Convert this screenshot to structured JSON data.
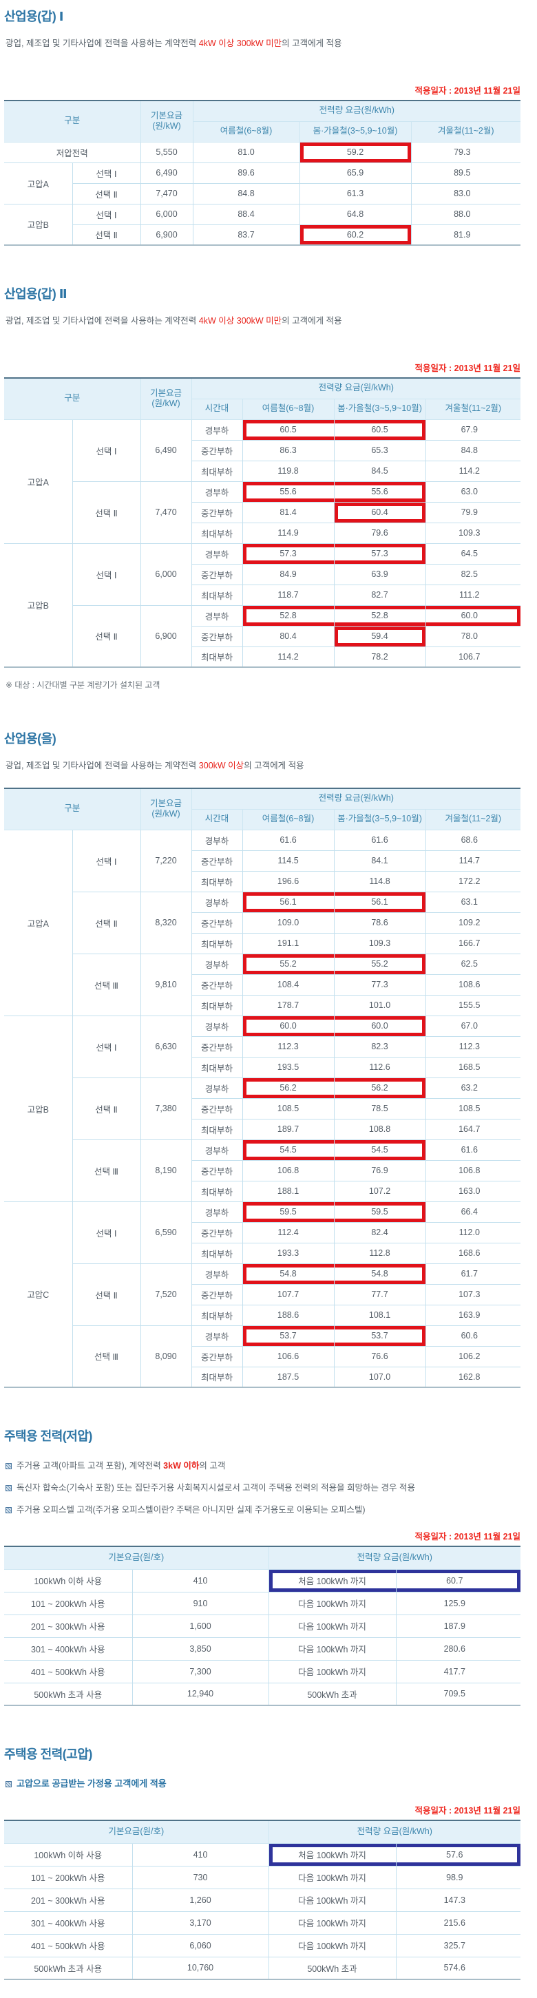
{
  "colors": {
    "title_blue": "#2d75a5",
    "accent_red": "#e8241d",
    "date_red": "#ef2b23",
    "header_bg": "#e3f1f9",
    "header_text": "#3d86ad",
    "red_box": "#e1121a",
    "navy_box": "#2e339b"
  },
  "sections": [
    {
      "title": "산업용(갑) Ⅰ",
      "desc": {
        "pre": "광업, 제조업 및 기타사업에 전력을 사용하는 계약전력 ",
        "red": "4kW 이상 300kW 미만",
        "post": "의 고객에게 적용"
      },
      "applied_date": "적용일자 : 2013년 11월 21일",
      "table": {
        "headers": {
          "group": "구분",
          "base": "기본요금(원/kW)",
          "energy": "전력량 요금(원/kWh)",
          "seasons": [
            "여름철(6~8월)",
            "봄·가을철(3~5,9~10월)",
            "겨울철(11~2월)"
          ]
        },
        "groups": [
          {
            "name": "저압전력",
            "options": [
              {
                "name": null,
                "base": "5,550",
                "values": [
                  "81.0",
                  "59.2",
                  "79.3"
                ],
                "hl": {
                  "from": 1,
                  "to": 1
                }
              }
            ]
          },
          {
            "name": "고압A",
            "options": [
              {
                "name": "선택 Ⅰ",
                "base": "6,490",
                "values": [
                  "89.6",
                  "65.9",
                  "89.5"
                ]
              },
              {
                "name": "선택 Ⅱ",
                "base": "7,470",
                "values": [
                  "84.8",
                  "61.3",
                  "83.0"
                ]
              }
            ]
          },
          {
            "name": "고압B",
            "options": [
              {
                "name": "선택 Ⅰ",
                "base": "6,000",
                "values": [
                  "88.4",
                  "64.8",
                  "88.0"
                ]
              },
              {
                "name": "선택 Ⅱ",
                "base": "6,900",
                "values": [
                  "83.7",
                  "60.2",
                  "81.9"
                ],
                "hl": {
                  "from": 1,
                  "to": 1
                }
              }
            ]
          }
        ]
      }
    },
    {
      "title": "산업용(갑) Ⅱ",
      "desc": {
        "pre": "광업, 제조업 및 기타사업에 전력을 사용하는 계약전력 ",
        "red": "4kW 이상 300kW 미만",
        "post": "의 고객에게 적용"
      },
      "applied_date": "적용일자 : 2013년 11월 21일",
      "footnote": "※ 대상 : 시간대별 구분 계량기가 설치된 고객",
      "table": {
        "headers": {
          "group": "구분",
          "base": "기본요금(원/kW)",
          "energy": "전력량 요금(원/kWh)",
          "time": "시간대",
          "seasons": [
            "여름철(6~8월)",
            "봄·가을철(3~5,9~10월)",
            "겨울철(11~2월)"
          ]
        },
        "groups": [
          {
            "name": "고압A",
            "options": [
              {
                "name": "선택 Ⅰ",
                "base": "6,490",
                "times": [
                  {
                    "label": "경부하",
                    "values": [
                      "60.5",
                      "60.5",
                      "67.9"
                    ],
                    "hl": {
                      "from": 0,
                      "to": 1
                    }
                  },
                  {
                    "label": "중간부하",
                    "values": [
                      "86.3",
                      "65.3",
                      "84.8"
                    ]
                  },
                  {
                    "label": "최대부하",
                    "values": [
                      "119.8",
                      "84.5",
                      "114.2"
                    ]
                  }
                ]
              },
              {
                "name": "선택 Ⅱ",
                "base": "7,470",
                "times": [
                  {
                    "label": "경부하",
                    "values": [
                      "55.6",
                      "55.6",
                      "63.0"
                    ],
                    "hl": {
                      "from": 0,
                      "to": 1
                    }
                  },
                  {
                    "label": "중간부하",
                    "values": [
                      "81.4",
                      "60.4",
                      "79.9"
                    ],
                    "hl": {
                      "from": 1,
                      "to": 1
                    }
                  },
                  {
                    "label": "최대부하",
                    "values": [
                      "114.9",
                      "79.6",
                      "109.3"
                    ]
                  }
                ]
              }
            ]
          },
          {
            "name": "고압B",
            "options": [
              {
                "name": "선택 Ⅰ",
                "base": "6,000",
                "times": [
                  {
                    "label": "경부하",
                    "values": [
                      "57.3",
                      "57.3",
                      "64.5"
                    ],
                    "hl": {
                      "from": 0,
                      "to": 1
                    }
                  },
                  {
                    "label": "중간부하",
                    "values": [
                      "84.9",
                      "63.9",
                      "82.5"
                    ]
                  },
                  {
                    "label": "최대부하",
                    "values": [
                      "118.7",
                      "82.7",
                      "111.2"
                    ]
                  }
                ]
              },
              {
                "name": "선택 Ⅱ",
                "base": "6,900",
                "times": [
                  {
                    "label": "경부하",
                    "values": [
                      "52.8",
                      "52.8",
                      "60.0"
                    ],
                    "hl": {
                      "from": 0,
                      "to": 2
                    }
                  },
                  {
                    "label": "중간부하",
                    "values": [
                      "80.4",
                      "59.4",
                      "78.0"
                    ],
                    "hl": {
                      "from": 1,
                      "to": 1
                    }
                  },
                  {
                    "label": "최대부하",
                    "values": [
                      "114.2",
                      "78.2",
                      "106.7"
                    ]
                  }
                ]
              }
            ]
          }
        ]
      }
    },
    {
      "title": "산업용(을)",
      "desc": {
        "pre": "광업, 제조업 및 기타사업에 전력을 사용하는 계약전력 ",
        "red": "300kW 이상",
        "post": "의 고객에게 적용"
      },
      "table": {
        "headers": {
          "group": "구분",
          "base": "기본요금(원/kW)",
          "energy": "전력량 요금(원/kWh)",
          "time": "시간대",
          "seasons": [
            "여름철(6~8월)",
            "봄·가을철(3~5,9~10월)",
            "겨울철(11~2월)"
          ]
        },
        "groups": [
          {
            "name": "고압A",
            "options": [
              {
                "name": "선택 Ⅰ",
                "base": "7,220",
                "times": [
                  {
                    "label": "경부하",
                    "values": [
                      "61.6",
                      "61.6",
                      "68.6"
                    ]
                  },
                  {
                    "label": "중간부하",
                    "values": [
                      "114.5",
                      "84.1",
                      "114.7"
                    ]
                  },
                  {
                    "label": "최대부하",
                    "values": [
                      "196.6",
                      "114.8",
                      "172.2"
                    ]
                  }
                ]
              },
              {
                "name": "선택 Ⅱ",
                "base": "8,320",
                "times": [
                  {
                    "label": "경부하",
                    "values": [
                      "56.1",
                      "56.1",
                      "63.1"
                    ],
                    "hl": {
                      "from": 0,
                      "to": 1
                    }
                  },
                  {
                    "label": "중간부하",
                    "values": [
                      "109.0",
                      "78.6",
                      "109.2"
                    ]
                  },
                  {
                    "label": "최대부하",
                    "values": [
                      "191.1",
                      "109.3",
                      "166.7"
                    ]
                  }
                ]
              },
              {
                "name": "선택 Ⅲ",
                "base": "9,810",
                "times": [
                  {
                    "label": "경부하",
                    "values": [
                      "55.2",
                      "55.2",
                      "62.5"
                    ],
                    "hl": {
                      "from": 0,
                      "to": 1
                    }
                  },
                  {
                    "label": "중간부하",
                    "values": [
                      "108.4",
                      "77.3",
                      "108.6"
                    ]
                  },
                  {
                    "label": "최대부하",
                    "values": [
                      "178.7",
                      "101.0",
                      "155.5"
                    ]
                  }
                ]
              }
            ]
          },
          {
            "name": "고압B",
            "options": [
              {
                "name": "선택 Ⅰ",
                "base": "6,630",
                "times": [
                  {
                    "label": "경부하",
                    "values": [
                      "60.0",
                      "60.0",
                      "67.0"
                    ],
                    "hl": {
                      "from": 0,
                      "to": 1
                    }
                  },
                  {
                    "label": "중간부하",
                    "values": [
                      "112.3",
                      "82.3",
                      "112.3"
                    ]
                  },
                  {
                    "label": "최대부하",
                    "values": [
                      "193.5",
                      "112.6",
                      "168.5"
                    ]
                  }
                ]
              },
              {
                "name": "선택 Ⅱ",
                "base": "7,380",
                "times": [
                  {
                    "label": "경부하",
                    "values": [
                      "56.2",
                      "56.2",
                      "63.2"
                    ],
                    "hl": {
                      "from": 0,
                      "to": 1
                    }
                  },
                  {
                    "label": "중간부하",
                    "values": [
                      "108.5",
                      "78.5",
                      "108.5"
                    ]
                  },
                  {
                    "label": "최대부하",
                    "values": [
                      "189.7",
                      "108.8",
                      "164.7"
                    ]
                  }
                ]
              },
              {
                "name": "선택 Ⅲ",
                "base": "8,190",
                "times": [
                  {
                    "label": "경부하",
                    "values": [
                      "54.5",
                      "54.5",
                      "61.6"
                    ],
                    "hl": {
                      "from": 0,
                      "to": 1
                    }
                  },
                  {
                    "label": "중간부하",
                    "values": [
                      "106.8",
                      "76.9",
                      "106.8"
                    ]
                  },
                  {
                    "label": "최대부하",
                    "values": [
                      "188.1",
                      "107.2",
                      "163.0"
                    ]
                  }
                ]
              }
            ]
          },
          {
            "name": "고압C",
            "options": [
              {
                "name": "선택 Ⅰ",
                "base": "6,590",
                "times": [
                  {
                    "label": "경부하",
                    "values": [
                      "59.5",
                      "59.5",
                      "66.4"
                    ],
                    "hl": {
                      "from": 0,
                      "to": 1
                    }
                  },
                  {
                    "label": "중간부하",
                    "values": [
                      "112.4",
                      "82.4",
                      "112.0"
                    ]
                  },
                  {
                    "label": "최대부하",
                    "values": [
                      "193.3",
                      "112.8",
                      "168.6"
                    ]
                  }
                ]
              },
              {
                "name": "선택 Ⅱ",
                "base": "7,520",
                "times": [
                  {
                    "label": "경부하",
                    "values": [
                      "54.8",
                      "54.8",
                      "61.7"
                    ],
                    "hl": {
                      "from": 0,
                      "to": 1
                    }
                  },
                  {
                    "label": "중간부하",
                    "values": [
                      "107.7",
                      "77.7",
                      "107.3"
                    ]
                  },
                  {
                    "label": "최대부하",
                    "values": [
                      "188.6",
                      "108.1",
                      "163.9"
                    ]
                  }
                ]
              },
              {
                "name": "선택 Ⅲ",
                "base": "8,090",
                "times": [
                  {
                    "label": "경부하",
                    "values": [
                      "53.7",
                      "53.7",
                      "60.6"
                    ],
                    "hl": {
                      "from": 0,
                      "to": 1
                    }
                  },
                  {
                    "label": "중간부하",
                    "values": [
                      "106.6",
                      "76.6",
                      "106.2"
                    ]
                  },
                  {
                    "label": "최대부하",
                    "values": [
                      "187.5",
                      "107.0",
                      "162.8"
                    ]
                  }
                ]
              }
            ]
          }
        ]
      }
    },
    {
      "title": "주택용 전력(저압)",
      "bullets": [
        {
          "pre": "주거용 고객(아파트 고객 포함), 계약전력 ",
          "em": "3kW 이하",
          "post": "의 고객"
        },
        {
          "text": "독신자 합숙소(기숙사 포함) 또는 집단주거용 사회복지시설로서 고객이 주택용 전력의 적용을 희망하는 경우 적용"
        },
        {
          "text": "주거용 오피스텔 고객(주거용 오피스텔이란? 주택은 아니지만 실제 주거용도로 이용되는 오피스텔)"
        }
      ],
      "applied_date": "적용일자 : 2013년 11월 21일",
      "table": {
        "headers": {
          "base": "기본요금(원/호)",
          "energy": "전력량 요금(원/kWh)"
        },
        "rows": [
          {
            "tier": "100kWh 이하 사용",
            "base": "410",
            "block": "처음 100kWh 까지",
            "rate": "60.7",
            "boxed": true
          },
          {
            "tier": "101 ~ 200kWh 사용",
            "base": "910",
            "block": "다음 100kWh 까지",
            "rate": "125.9"
          },
          {
            "tier": "201 ~ 300kWh 사용",
            "base": "1,600",
            "block": "다음 100kWh 까지",
            "rate": "187.9"
          },
          {
            "tier": "301 ~ 400kWh 사용",
            "base": "3,850",
            "block": "다음 100kWh 까지",
            "rate": "280.6"
          },
          {
            "tier": "401 ~ 500kWh 사용",
            "base": "7,300",
            "block": "다음 100kWh 까지",
            "rate": "417.7"
          },
          {
            "tier": "500kWh 초과 사용",
            "base": "12,940",
            "block": "500kWh 초과",
            "rate": "709.5"
          }
        ]
      }
    },
    {
      "title": "주택용 전력(고압)",
      "bullets": [
        {
          "text": "고압으로 공급받는 가정용 고객에게 적용",
          "blue": true
        }
      ],
      "applied_date": "적용일자 : 2013년 11월 21일",
      "table": {
        "headers": {
          "base": "기본요금(원/호)",
          "energy": "전력량 요금(원/kWh)"
        },
        "rows": [
          {
            "tier": "100kWh 이하 사용",
            "base": "410",
            "block": "처음 100kWh 까지",
            "rate": "57.6",
            "boxed": true
          },
          {
            "tier": "101 ~ 200kWh 사용",
            "base": "730",
            "block": "다음 100kWh 까지",
            "rate": "98.9"
          },
          {
            "tier": "201 ~ 300kWh 사용",
            "base": "1,260",
            "block": "다음 100kWh 까지",
            "rate": "147.3"
          },
          {
            "tier": "301 ~ 400kWh 사용",
            "base": "3,170",
            "block": "다음 100kWh 까지",
            "rate": "215.6"
          },
          {
            "tier": "401 ~ 500kWh 사용",
            "base": "6,060",
            "block": "다음 100kWh 까지",
            "rate": "325.7"
          },
          {
            "tier": "500kWh 초과 사용",
            "base": "10,760",
            "block": "500kWh 초과",
            "rate": "574.6"
          }
        ]
      }
    }
  ]
}
